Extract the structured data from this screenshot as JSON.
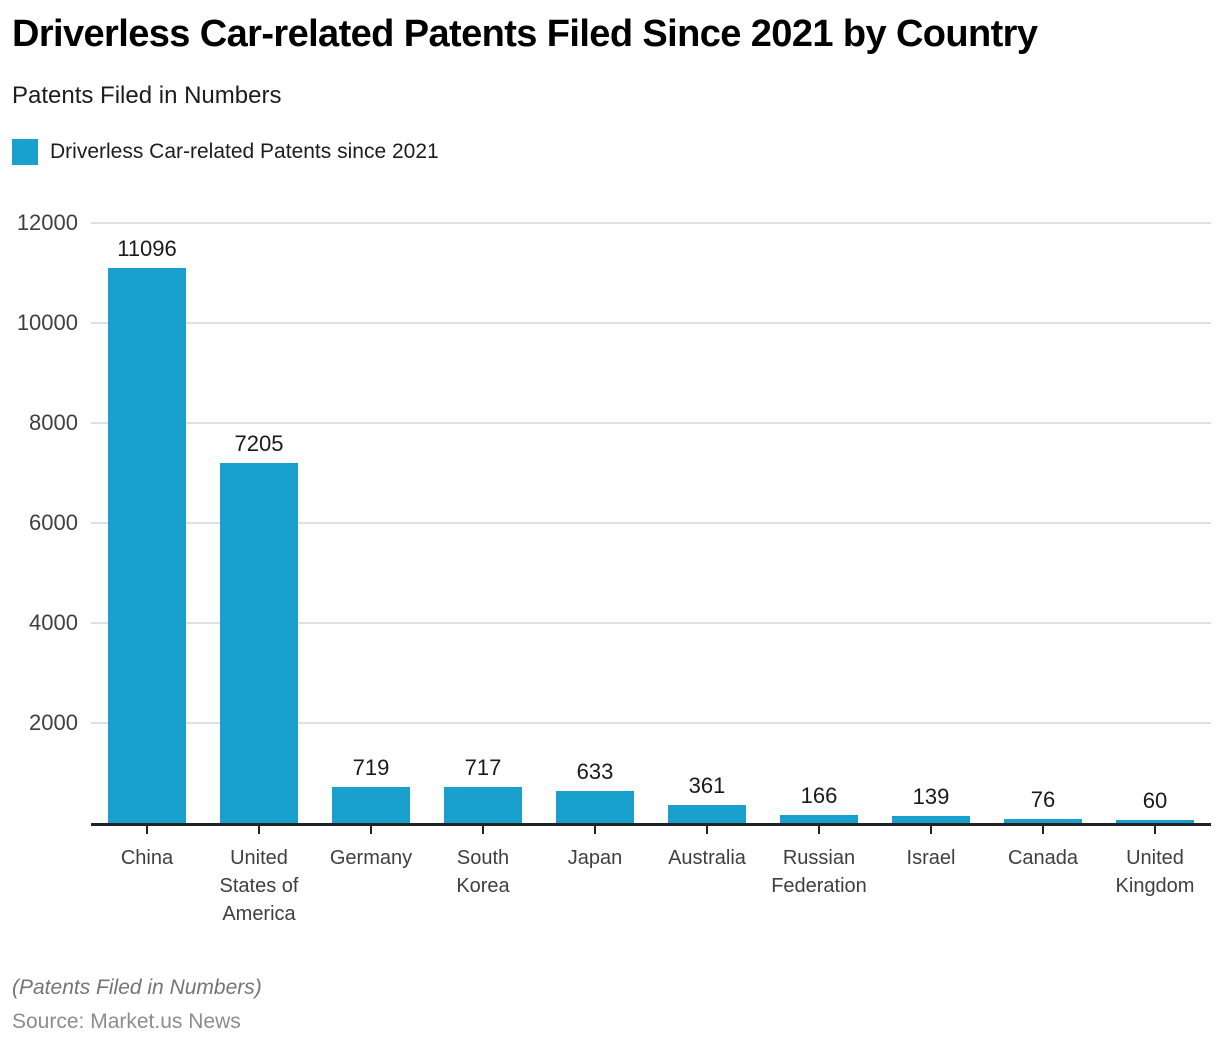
{
  "header": {
    "title": "Driverless Car-related Patents Filed Since 2021 by Country",
    "subtitle": "Patents Filed in Numbers"
  },
  "legend": {
    "label": "Driverless Car-related Patents since 2021"
  },
  "chart_data": {
    "type": "bar",
    "title": "Driverless Car-related Patents Filed Since 2021 by Country",
    "subtitle": "Patents Filed in Numbers",
    "series_name": "Driverless Car-related Patents since 2021",
    "categories": [
      "China",
      "United States of America",
      "Germany",
      "South Korea",
      "Japan",
      "Australia",
      "Russian Federation",
      "Israel",
      "Canada",
      "United Kingdom"
    ],
    "values": [
      11096,
      7205,
      719,
      717,
      633,
      361,
      166,
      139,
      76,
      60
    ],
    "xlabel": "",
    "ylabel": "",
    "ylim": [
      0,
      12000
    ],
    "yticks": [
      2000,
      4000,
      6000,
      8000,
      10000,
      12000
    ],
    "grid": true,
    "legend_position": "top-left",
    "bar_color": "#1AA0CC",
    "gridline_color": "#E0E0E0",
    "axis_color": "#222222"
  },
  "footer": {
    "note": "(Patents Filed in Numbers)",
    "source": "Source: Market.us News"
  }
}
